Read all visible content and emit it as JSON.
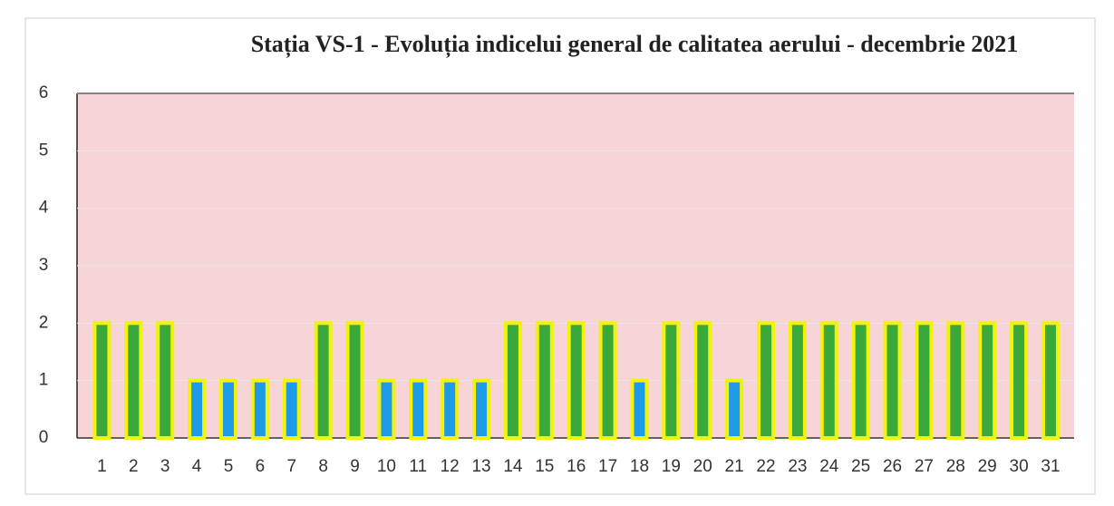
{
  "chart_data": {
    "type": "bar",
    "title": "Stația VS-1 - Evoluția indicelui general de calitatea aerului - decembrie 2021",
    "categories": [
      "1",
      "2",
      "3",
      "4",
      "5",
      "6",
      "7",
      "8",
      "9",
      "10",
      "11",
      "12",
      "13",
      "14",
      "15",
      "16",
      "17",
      "18",
      "19",
      "20",
      "21",
      "22",
      "23",
      "24",
      "25",
      "26",
      "27",
      "28",
      "29",
      "30",
      "31"
    ],
    "values": [
      2,
      2,
      2,
      1,
      1,
      1,
      1,
      2,
      2,
      1,
      1,
      1,
      1,
      2,
      2,
      2,
      2,
      1,
      2,
      2,
      1,
      2,
      2,
      2,
      2,
      2,
      2,
      2,
      2,
      2,
      2
    ],
    "colors": [
      "#3aa83a",
      "#3aa83a",
      "#3aa83a",
      "#1e9be6",
      "#1e9be6",
      "#1e9be6",
      "#1e9be6",
      "#3aa83a",
      "#3aa83a",
      "#1e9be6",
      "#1e9be6",
      "#1e9be6",
      "#1e9be6",
      "#3aa83a",
      "#3aa83a",
      "#3aa83a",
      "#3aa83a",
      "#1e9be6",
      "#3aa83a",
      "#3aa83a",
      "#1e9be6",
      "#3aa83a",
      "#3aa83a",
      "#3aa83a",
      "#3aa83a",
      "#3aa83a",
      "#3aa83a",
      "#3aa83a",
      "#3aa83a",
      "#3aa83a",
      "#3aa83a"
    ],
    "border_color": "#f2f20a",
    "ylim": [
      0,
      6
    ],
    "yticks": [
      0,
      1,
      2,
      3,
      4,
      5,
      6
    ],
    "grid": true
  }
}
